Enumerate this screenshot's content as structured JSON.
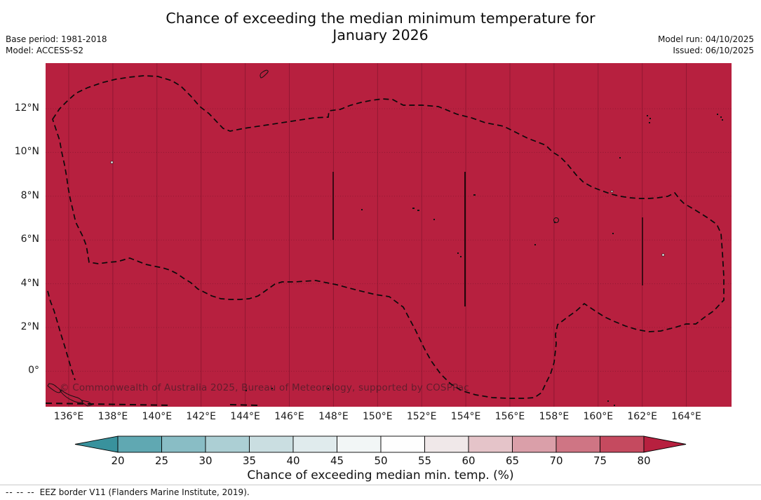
{
  "header": {
    "title_line1": "Chance of exceeding the median minimum temperature for",
    "title_line2": "January 2026",
    "base_period_label": "Base period: 1981-2018",
    "model_label": "Model: ACCESS-S2",
    "model_run_label": "Model run: 04/10/2025",
    "issued_label": "Issued: 06/10/2025"
  },
  "map": {
    "fill_color": "#b7203f",
    "watermark": "© Commonwealth of Australia 2025, Bureau of Meteorology, supported by COSPPac",
    "y_ticks": [
      "12°N",
      "10°N",
      "8°N",
      "6°N",
      "4°N",
      "2°N",
      "0°"
    ],
    "x_ticks": [
      "136°E",
      "138°E",
      "140°E",
      "142°E",
      "144°E",
      "146°E",
      "148°E",
      "150°E",
      "152°E",
      "154°E",
      "156°E",
      "158°E",
      "160°E",
      "162°E",
      "164°E"
    ]
  },
  "colorbar": {
    "label": "Chance of exceeding median min. temp. (%)",
    "ticks": [
      "20",
      "25",
      "30",
      "35",
      "40",
      "45",
      "50",
      "55",
      "60",
      "65",
      "70",
      "75",
      "80"
    ],
    "segment_colors": [
      "#60a8b2",
      "#89bdc5",
      "#accfd4",
      "#cadee1",
      "#e0ebed",
      "#f2f6f6",
      "#fefefe",
      "#f0e8e9",
      "#e5c4c9",
      "#da9fa9",
      "#cf7584",
      "#c54a5f"
    ],
    "left_arrow_color": "#39929d",
    "right_arrow_color": "#b7203f"
  },
  "footer": {
    "dashes": "--  --  --",
    "text": "EEZ border V11 (Flanders Marine Institute, 2019)."
  },
  "chart_data": {
    "type": "heatmap",
    "title": "Chance of exceeding the median minimum temperature for January 2026",
    "base_period": "1981-2018",
    "model": "ACCESS-S2",
    "model_run": "04/10/2025",
    "issued": "06/10/2025",
    "x_axis": {
      "ticks": [
        "136°E",
        "138°E",
        "140°E",
        "142°E",
        "144°E",
        "146°E",
        "148°E",
        "150°E",
        "152°E",
        "154°E",
        "156°E",
        "158°E",
        "160°E",
        "162°E",
        "164°E"
      ],
      "approx_range": [
        "135°E",
        "166°E"
      ]
    },
    "y_axis": {
      "ticks": [
        "0°",
        "2°N",
        "4°N",
        "6°N",
        "8°N",
        "10°N",
        "12°N"
      ],
      "approx_range": [
        "2°S",
        "14°N"
      ]
    },
    "colorbar": {
      "label": "Chance of exceeding median min. temp. (%)",
      "ticks": [
        20,
        25,
        30,
        35,
        40,
        45,
        50,
        55,
        60,
        65,
        70,
        75,
        80
      ],
      "extend": "both",
      "low_color": "teal",
      "high_color": "dark red"
    },
    "field_values": "uniform: chance exceeds 80% (darkest red class) over the entire mapped western Pacific domain",
    "overlays": [
      "dashed EEZ borders",
      "island coastlines",
      "2-degree graticule"
    ]
  }
}
